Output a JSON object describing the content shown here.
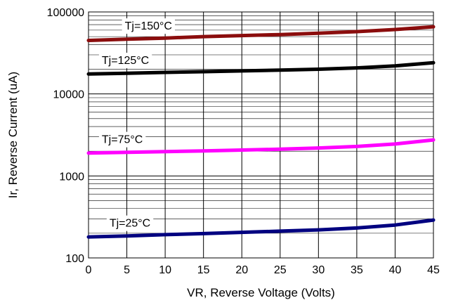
{
  "chart_data": {
    "type": "line",
    "title": "",
    "xlabel": "VR, Reverse Voltage (Volts)",
    "ylabel": "Ir, Reverse Current (uA)",
    "xlim": [
      0,
      45
    ],
    "ylim": [
      100,
      100000
    ],
    "y_scale": "log",
    "grid": true,
    "x_ticks": [
      "0",
      "5",
      "10",
      "15",
      "20",
      "25",
      "30",
      "35",
      "40",
      "45"
    ],
    "y_ticks": [
      "100",
      "1000",
      "10000",
      "100000"
    ],
    "x": [
      0,
      5,
      10,
      15,
      20,
      25,
      30,
      35,
      40,
      45
    ],
    "series": [
      {
        "name": "Tj=150°C",
        "color": "#8b0d0d",
        "values": [
          45000,
          46500,
          48000,
          50000,
          51500,
          53000,
          55000,
          57500,
          61000,
          66000
        ]
      },
      {
        "name": "Tj=125°C",
        "color": "#000000",
        "values": [
          17500,
          17900,
          18300,
          18700,
          19100,
          19500,
          20000,
          20800,
          22000,
          24000
        ]
      },
      {
        "name": "Tj=75°C",
        "color": "#ff00ff",
        "values": [
          1900,
          1940,
          1980,
          2020,
          2070,
          2120,
          2190,
          2290,
          2450,
          2750
        ]
      },
      {
        "name": "Tj=25°C",
        "color": "#000080",
        "values": [
          180,
          185,
          192,
          198,
          205,
          212,
          220,
          232,
          252,
          290
        ]
      }
    ]
  }
}
